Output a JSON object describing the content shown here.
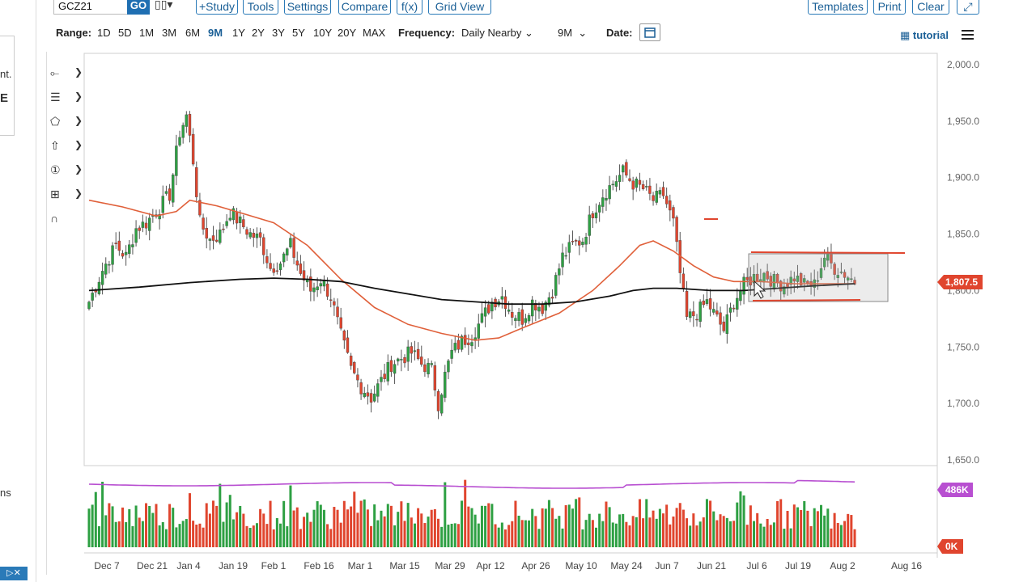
{
  "left_page": {
    "frag1": "nt.",
    "frag2": "E",
    "frag3": "ns"
  },
  "toolbar": {
    "symbol": "GCZ21",
    "go_label": "GO",
    "chart_type_icon": "candlestick-icon",
    "study_label": "+Study",
    "tools_label": "Tools",
    "settings_label": "Settings",
    "compare_label": "Compare",
    "fx_label": "f(x)",
    "grid_label": "Grid View",
    "templates_label": "Templates",
    "print_label": "Print",
    "clear_label": "Clear"
  },
  "range_bar": {
    "range_label": "Range:",
    "ranges": [
      "1D",
      "5D",
      "1M",
      "3M",
      "6M",
      "9M",
      "1Y",
      "2Y",
      "3Y",
      "5Y",
      "10Y",
      "20Y",
      "MAX"
    ],
    "active_range": "9M",
    "frequency_label": "Frequency:",
    "frequency_value": "Daily Nearby",
    "period_value": "9M",
    "date_label": "Date:",
    "tutorial_label": "tutorial"
  },
  "colors": {
    "up": "#2ea043",
    "down": "#e0452e",
    "ma_short": "#e0603a",
    "ma_long": "#111111",
    "vol_line": "#b84fd1",
    "accent": "#1a5f96"
  },
  "chart_data": {
    "type": "candlestick",
    "x_ticks": [
      "Dec 7",
      "Dec 21",
      "Jan 4",
      "Jan 19",
      "Feb 1",
      "Feb 16",
      "Mar 1",
      "Mar 15",
      "Mar 29",
      "Apr 12",
      "Apr 26",
      "May 10",
      "May 24",
      "Jun 7",
      "Jun 21",
      "Jul 6",
      "Jul 19",
      "Aug 2",
      "Aug 16"
    ],
    "y_ticks": [
      "2,000.0",
      "1,950.0",
      "1,900.0",
      "1,850.0",
      "1,800.0",
      "1,750.0",
      "1,700.0",
      "1,650.0"
    ],
    "ylim": [
      1650,
      2000
    ],
    "last_price": "1,807.5",
    "volume_label": "486K",
    "volume_zero_label": "0K",
    "close_path": [
      [
        0,
        1790
      ],
      [
        4,
        1818
      ],
      [
        8,
        1840
      ],
      [
        11,
        1830
      ],
      [
        14,
        1855
      ],
      [
        17,
        1860
      ],
      [
        20,
        1870
      ],
      [
        24,
        1885
      ],
      [
        27,
        1940
      ],
      [
        29,
        1955
      ],
      [
        31,
        1915
      ],
      [
        33,
        1860
      ],
      [
        36,
        1845
      ],
      [
        39,
        1850
      ],
      [
        42,
        1870
      ],
      [
        45,
        1860
      ],
      [
        48,
        1850
      ],
      [
        51,
        1845
      ],
      [
        54,
        1820
      ],
      [
        57,
        1825
      ],
      [
        60,
        1840
      ],
      [
        63,
        1815
      ],
      [
        66,
        1800
      ],
      [
        69,
        1810
      ],
      [
        72,
        1795
      ],
      [
        75,
        1760
      ],
      [
        78,
        1730
      ],
      [
        81,
        1715
      ],
      [
        84,
        1705
      ],
      [
        87,
        1720
      ],
      [
        90,
        1735
      ],
      [
        93,
        1740
      ],
      [
        96,
        1745
      ],
      [
        99,
        1735
      ],
      [
        102,
        1730
      ],
      [
        104,
        1700
      ],
      [
        106,
        1725
      ],
      [
        108,
        1745
      ],
      [
        111,
        1755
      ],
      [
        114,
        1760
      ],
      [
        117,
        1775
      ],
      [
        120,
        1790
      ],
      [
        123,
        1795
      ],
      [
        126,
        1780
      ],
      [
        129,
        1775
      ],
      [
        132,
        1790
      ],
      [
        135,
        1785
      ],
      [
        138,
        1800
      ],
      [
        141,
        1830
      ],
      [
        144,
        1840
      ],
      [
        147,
        1845
      ],
      [
        150,
        1870
      ],
      [
        153,
        1885
      ],
      [
        156,
        1895
      ],
      [
        159,
        1905
      ],
      [
        162,
        1895
      ],
      [
        165,
        1890
      ],
      [
        168,
        1880
      ],
      [
        171,
        1885
      ],
      [
        174,
        1860
      ],
      [
        176,
        1815
      ],
      [
        178,
        1775
      ],
      [
        181,
        1780
      ],
      [
        184,
        1790
      ],
      [
        187,
        1775
      ],
      [
        189,
        1765
      ],
      [
        192,
        1790
      ],
      [
        195,
        1805
      ],
      [
        198,
        1812
      ],
      [
        201,
        1815
      ],
      [
        204,
        1808
      ],
      [
        207,
        1805
      ],
      [
        210,
        1812
      ],
      [
        213,
        1805
      ],
      [
        216,
        1805
      ],
      [
        219,
        1830
      ],
      [
        222,
        1820
      ],
      [
        225,
        1815
      ],
      [
        228,
        1808
      ]
    ],
    "ma_short": [
      [
        0,
        1880
      ],
      [
        10,
        1874
      ],
      [
        20,
        1866
      ],
      [
        26,
        1870
      ],
      [
        30,
        1880
      ],
      [
        38,
        1875
      ],
      [
        46,
        1868
      ],
      [
        55,
        1860
      ],
      [
        65,
        1840
      ],
      [
        75,
        1810
      ],
      [
        85,
        1785
      ],
      [
        95,
        1770
      ],
      [
        105,
        1762
      ],
      [
        115,
        1756
      ],
      [
        122,
        1758
      ],
      [
        130,
        1768
      ],
      [
        140,
        1780
      ],
      [
        150,
        1800
      ],
      [
        158,
        1822
      ],
      [
        164,
        1840
      ],
      [
        168,
        1844
      ],
      [
        174,
        1835
      ],
      [
        180,
        1822
      ],
      [
        186,
        1812
      ],
      [
        192,
        1808
      ],
      [
        200,
        1808
      ],
      [
        210,
        1806
      ],
      [
        220,
        1806
      ],
      [
        228,
        1806
      ]
    ],
    "ma_long": [
      [
        0,
        1800
      ],
      [
        15,
        1803
      ],
      [
        30,
        1807
      ],
      [
        45,
        1810
      ],
      [
        55,
        1811
      ],
      [
        65,
        1810
      ],
      [
        75,
        1808
      ],
      [
        85,
        1802
      ],
      [
        95,
        1797
      ],
      [
        105,
        1792
      ],
      [
        115,
        1790
      ],
      [
        125,
        1788
      ],
      [
        135,
        1788
      ],
      [
        145,
        1790
      ],
      [
        155,
        1795
      ],
      [
        162,
        1800
      ],
      [
        168,
        1802
      ],
      [
        175,
        1802
      ],
      [
        185,
        1800
      ],
      [
        195,
        1800
      ],
      [
        205,
        1802
      ],
      [
        215,
        1804
      ],
      [
        228,
        1806
      ]
    ],
    "volume_ma_label": "486K"
  }
}
